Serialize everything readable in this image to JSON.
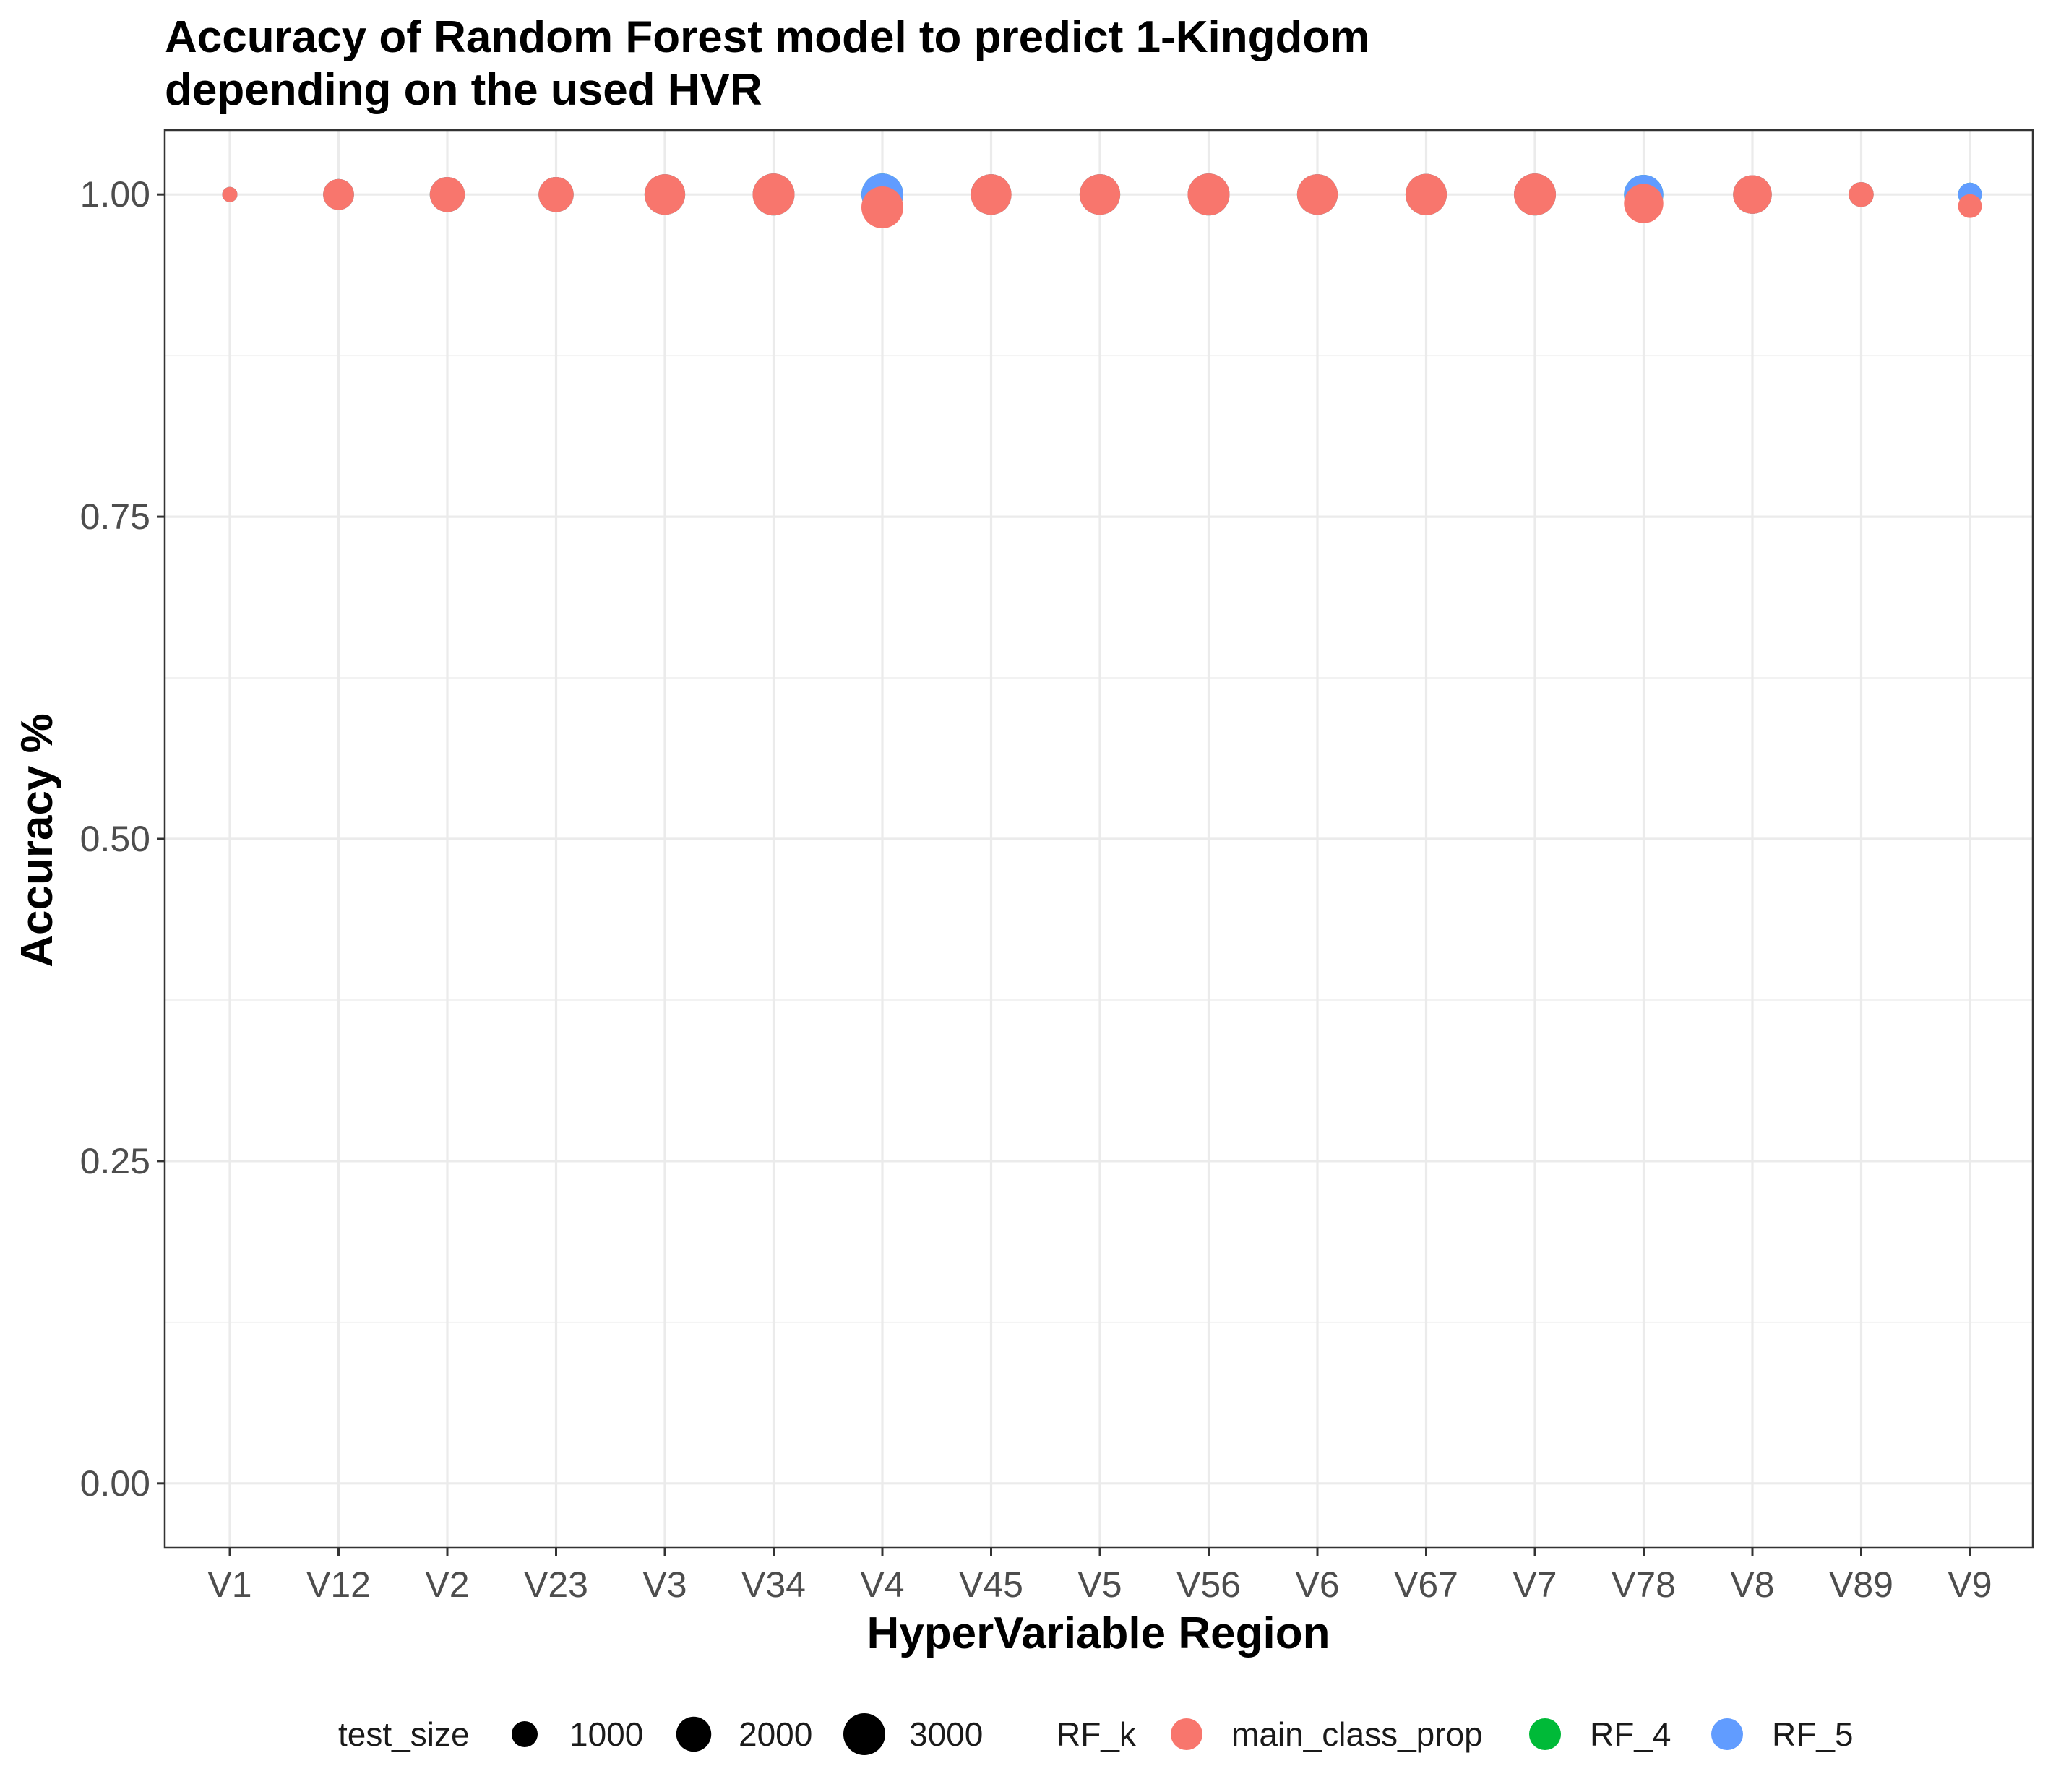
{
  "chart_data": {
    "type": "scatter",
    "title": [
      "Accuracy of Random Forest model to predict 1-Kingdom",
      "depending on the used HVR"
    ],
    "xlabel": "HyperVariable Region",
    "ylabel": "Accuracy %",
    "categories": [
      "V1",
      "V12",
      "V2",
      "V23",
      "V3",
      "V34",
      "V4",
      "V45",
      "V5",
      "V56",
      "V6",
      "V67",
      "V7",
      "V78",
      "V8",
      "V89",
      "V9"
    ],
    "ylim": [
      -0.05,
      1.05
    ],
    "yticks": [
      0.0,
      0.25,
      0.5,
      0.75,
      1.0
    ],
    "ytick_labels": [
      "0.00",
      "0.25",
      "0.50",
      "0.75",
      "1.00"
    ],
    "grid": true,
    "legend_position": "bottom",
    "legend": {
      "size_title": "test_size",
      "size_entries": [
        {
          "label": "1000",
          "value": 1000
        },
        {
          "label": "2000",
          "value": 2000
        },
        {
          "label": "3000",
          "value": 3000
        }
      ],
      "color_title": "RF_k",
      "color_entries": [
        {
          "label": "main_class_prop",
          "color": "#F8766D"
        },
        {
          "label": "RF_4",
          "color": "#00BA38"
        },
        {
          "label": "RF_5",
          "color": "#619CFF"
        }
      ]
    },
    "series": [
      {
        "name": "RF_4",
        "color": "#00BA38",
        "points": [
          {
            "x": "V1",
            "y": 1.0,
            "test_size": 250
          },
          {
            "x": "V12",
            "y": 1.0,
            "test_size": 1500
          },
          {
            "x": "V2",
            "y": 1.0,
            "test_size": 2000
          },
          {
            "x": "V23",
            "y": 1.0,
            "test_size": 2000
          },
          {
            "x": "V3",
            "y": 1.0,
            "test_size": 2800
          },
          {
            "x": "V34",
            "y": 1.0,
            "test_size": 3000
          },
          {
            "x": "V4",
            "y": 1.0,
            "test_size": 3000
          },
          {
            "x": "V45",
            "y": 1.0,
            "test_size": 2800
          },
          {
            "x": "V5",
            "y": 1.0,
            "test_size": 2800
          },
          {
            "x": "V56",
            "y": 1.0,
            "test_size": 3000
          },
          {
            "x": "V6",
            "y": 1.0,
            "test_size": 2800
          },
          {
            "x": "V67",
            "y": 1.0,
            "test_size": 2900
          },
          {
            "x": "V7",
            "y": 1.0,
            "test_size": 3000
          },
          {
            "x": "V78",
            "y": 1.0,
            "test_size": 2600
          },
          {
            "x": "V8",
            "y": 1.0,
            "test_size": 2500
          },
          {
            "x": "V89",
            "y": 1.0,
            "test_size": 900
          },
          {
            "x": "V9",
            "y": 1.0,
            "test_size": 800
          }
        ]
      },
      {
        "name": "RF_5",
        "color": "#619CFF",
        "points": [
          {
            "x": "V1",
            "y": 1.0,
            "test_size": 250
          },
          {
            "x": "V12",
            "y": 1.0,
            "test_size": 1500
          },
          {
            "x": "V2",
            "y": 1.0,
            "test_size": 2000
          },
          {
            "x": "V23",
            "y": 1.0,
            "test_size": 2000
          },
          {
            "x": "V3",
            "y": 1.0,
            "test_size": 2800
          },
          {
            "x": "V34",
            "y": 1.0,
            "test_size": 3000
          },
          {
            "x": "V4",
            "y": 1.0,
            "test_size": 3000
          },
          {
            "x": "V45",
            "y": 1.0,
            "test_size": 2800
          },
          {
            "x": "V5",
            "y": 1.0,
            "test_size": 2800
          },
          {
            "x": "V56",
            "y": 1.0,
            "test_size": 3000
          },
          {
            "x": "V6",
            "y": 1.0,
            "test_size": 2800
          },
          {
            "x": "V67",
            "y": 1.0,
            "test_size": 2900
          },
          {
            "x": "V7",
            "y": 1.0,
            "test_size": 3000
          },
          {
            "x": "V78",
            "y": 1.0,
            "test_size": 2600
          },
          {
            "x": "V8",
            "y": 1.0,
            "test_size": 2500
          },
          {
            "x": "V89",
            "y": 1.0,
            "test_size": 900
          },
          {
            "x": "V9",
            "y": 1.0,
            "test_size": 800
          }
        ]
      },
      {
        "name": "main_class_prop",
        "color": "#F8766D",
        "points": [
          {
            "x": "V1",
            "y": 1.0,
            "test_size": 250
          },
          {
            "x": "V12",
            "y": 1.0,
            "test_size": 1500
          },
          {
            "x": "V2",
            "y": 1.0,
            "test_size": 2000
          },
          {
            "x": "V23",
            "y": 1.0,
            "test_size": 2000
          },
          {
            "x": "V3",
            "y": 1.0,
            "test_size": 2800
          },
          {
            "x": "V34",
            "y": 1.0,
            "test_size": 3000
          },
          {
            "x": "V4",
            "y": 0.99,
            "test_size": 3000
          },
          {
            "x": "V45",
            "y": 1.0,
            "test_size": 2800
          },
          {
            "x": "V5",
            "y": 1.0,
            "test_size": 2800
          },
          {
            "x": "V56",
            "y": 1.0,
            "test_size": 3000
          },
          {
            "x": "V6",
            "y": 1.0,
            "test_size": 2800
          },
          {
            "x": "V67",
            "y": 1.0,
            "test_size": 2900
          },
          {
            "x": "V7",
            "y": 1.0,
            "test_size": 3000
          },
          {
            "x": "V78",
            "y": 0.993,
            "test_size": 2600
          },
          {
            "x": "V8",
            "y": 1.0,
            "test_size": 2500
          },
          {
            "x": "V89",
            "y": 1.0,
            "test_size": 900
          },
          {
            "x": "V9",
            "y": 0.991,
            "test_size": 800
          }
        ]
      }
    ]
  }
}
